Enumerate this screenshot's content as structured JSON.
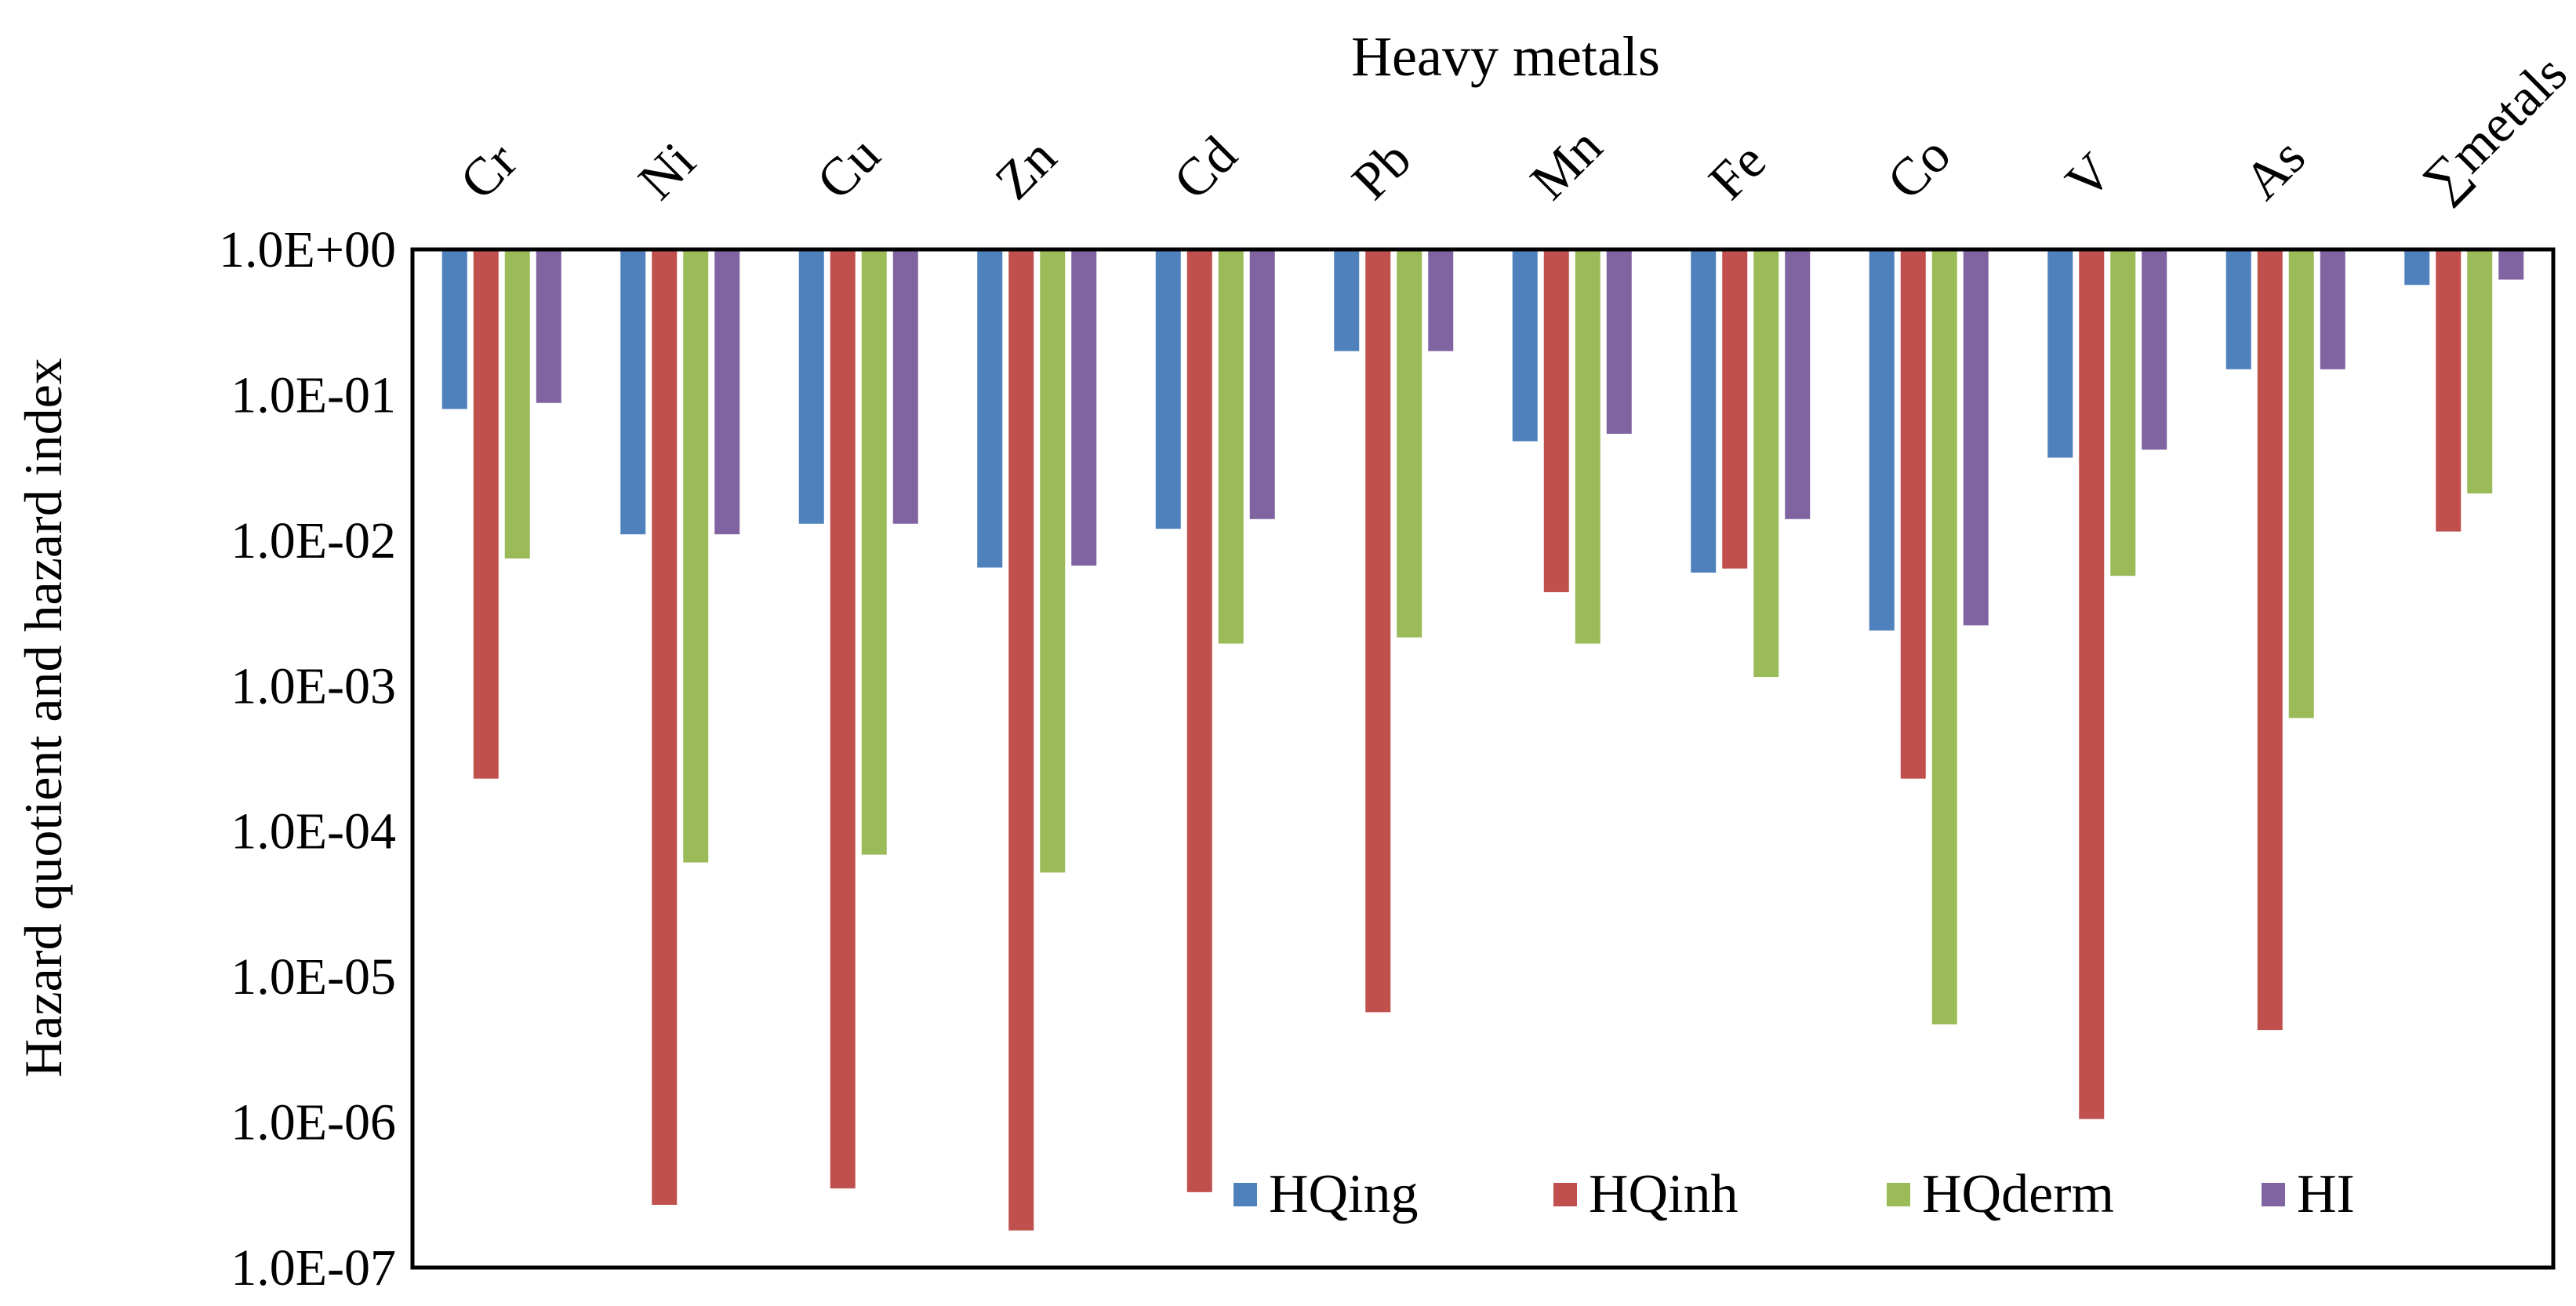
{
  "chart_data": {
    "type": "bar",
    "scale": "log",
    "title": "Heavy metals",
    "xlabel": "Heavy metals",
    "ylabel": "Hazard quotient and hazard index",
    "ylim": [
      1e-07,
      1
    ],
    "yticks": [
      "1.0E+00",
      "1.0E-01",
      "1.0E-02",
      "1.0E-03",
      "1.0E-04",
      "1.0E-05",
      "1.0E-06",
      "1.0E-07"
    ],
    "grid": false,
    "legend_position": "bottom-right",
    "categories": [
      "Cr",
      "Ni",
      "Cu",
      "Zn",
      "Cd",
      "Pb",
      "Mn",
      "Fe",
      "Co",
      "V",
      "As",
      "∑metals"
    ],
    "series": [
      {
        "name": "HQing",
        "color": "#4F81BD",
        "values": [
          0.08,
          0.011,
          0.013,
          0.0065,
          0.012,
          0.2,
          0.048,
          0.006,
          0.0024,
          0.037,
          0.15,
          0.57
        ]
      },
      {
        "name": "HQinh",
        "color": "#C0504D",
        "values": [
          0.00023,
          2.7e-07,
          3.5e-07,
          1.8e-07,
          3.3e-07,
          5.7e-06,
          0.0044,
          0.0064,
          0.00023,
          1.05e-06,
          4.3e-06,
          0.0115
        ]
      },
      {
        "name": "HQderm",
        "color": "#9BBB59",
        "values": [
          0.0075,
          6.1e-05,
          6.9e-05,
          5.2e-05,
          0.00195,
          0.00215,
          0.00195,
          0.00115,
          4.7e-06,
          0.0057,
          0.0006,
          0.021
        ]
      },
      {
        "name": "HI",
        "color": "#8064A2",
        "values": [
          0.088,
          0.011,
          0.013,
          0.0067,
          0.014,
          0.2,
          0.054,
          0.014,
          0.0026,
          0.042,
          0.15,
          0.62
        ]
      }
    ]
  }
}
